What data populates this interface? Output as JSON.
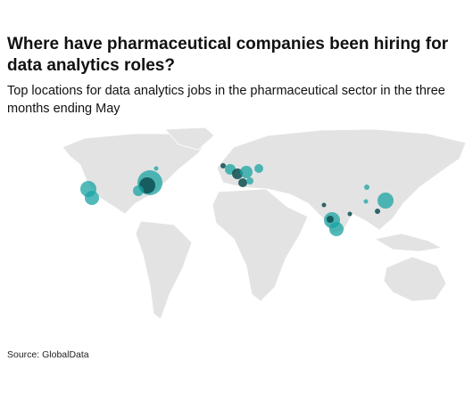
{
  "header": {
    "title": "Where have pharmaceutical companies been hiring for data analytics roles?",
    "subtitle": "Top locations for data analytics jobs in the pharmaceutical sector in the three months ending May"
  },
  "footer": {
    "source": "Source: GlobalData"
  }
}
